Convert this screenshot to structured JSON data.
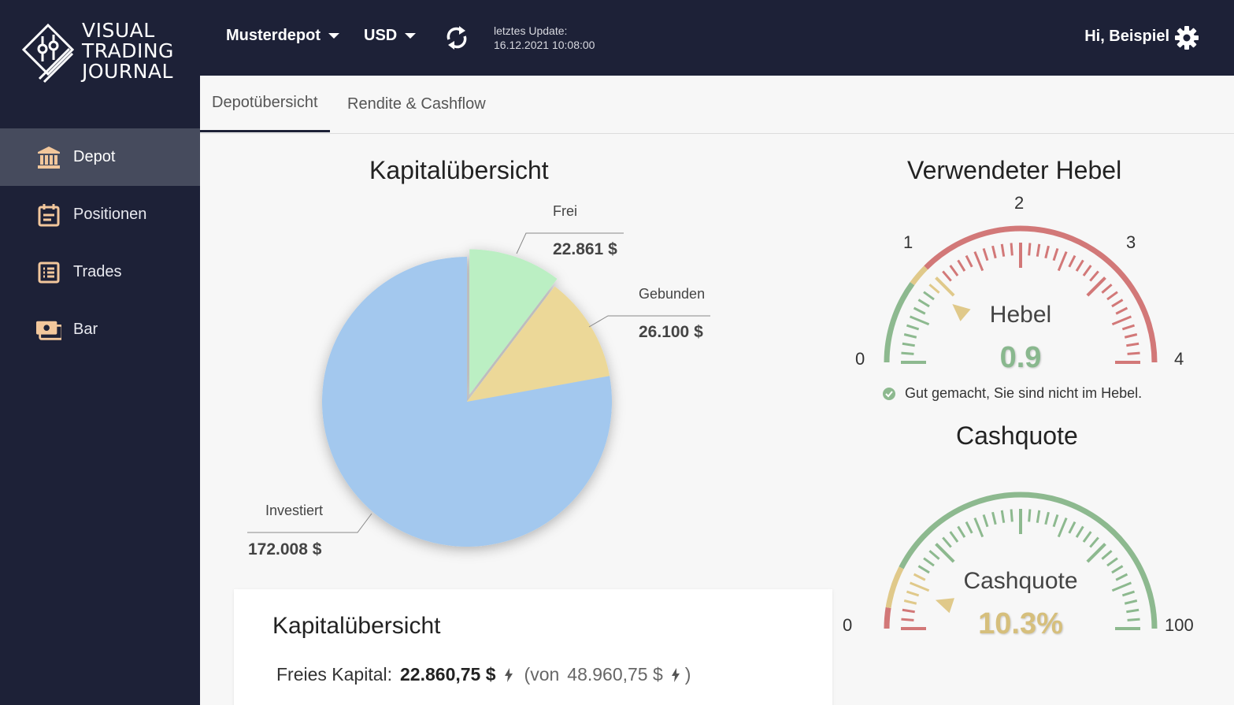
{
  "brand": {
    "line1": "VISUAL",
    "line2": "TRADING",
    "line3": "JOURNAL"
  },
  "sidebar": {
    "items": [
      {
        "label": "Depot",
        "icon": "bank-icon",
        "active": true
      },
      {
        "label": "Positionen",
        "icon": "calendar-icon",
        "active": false
      },
      {
        "label": "Trades",
        "icon": "list-icon",
        "active": false
      },
      {
        "label": "Bar",
        "icon": "cash-icon",
        "active": false
      }
    ]
  },
  "header": {
    "depot_select": "Musterdepot",
    "currency_select": "USD",
    "update_label": "letztes Update:",
    "update_time": "16.12.2021 10:08:00",
    "greeting": "Hi, Beispiel"
  },
  "tabs": [
    {
      "label": "Depotübersicht",
      "active": true
    },
    {
      "label": "Rendite & Cashflow",
      "active": false
    }
  ],
  "capital_chart": {
    "title": "Kapitalübersicht",
    "slices": [
      {
        "name": "Frei",
        "value_label": "22.861 $",
        "value": 22861,
        "color": "#bbefc3"
      },
      {
        "name": "Gebunden",
        "value_label": "26.100 $",
        "value": 26100,
        "color": "#ecd898"
      },
      {
        "name": "Investiert",
        "value_label": "172.008 $",
        "value": 172008,
        "color": "#a3c8ee"
      }
    ]
  },
  "leverage_gauge": {
    "title": "Verwendeter Hebel",
    "center_title": "Hebel",
    "value_label": "0.9",
    "value": 0.9,
    "min": 0,
    "max": 4,
    "tick_labels": [
      "0",
      "1",
      "2",
      "3",
      "4"
    ],
    "hint": "Gut gemacht, Sie sind nicht im Hebel.",
    "value_color": "#89b88e"
  },
  "cash_gauge": {
    "title": "Cashquote",
    "center_title": "Cashquote",
    "value_label": "10.3%",
    "value": 10.3,
    "min": 0,
    "max": 100,
    "tick_labels": [
      "0",
      "100"
    ],
    "value_color": "#d6bf7c"
  },
  "summary_card": {
    "title": "Kapitalübersicht",
    "free_label": "Freies Kapital:",
    "free_value": "22.860,75 $",
    "of_prefix": "(von",
    "total_value": "48.960,75 $",
    "of_suffix": ")"
  },
  "colors": {
    "sidebar_bg": "#1d2137",
    "active_item": "#464b5d",
    "icon_accent": "#f2c79c",
    "gauge_green": "#8db98f",
    "gauge_yellow": "#e0c98a",
    "gauge_red": "#d27878"
  }
}
